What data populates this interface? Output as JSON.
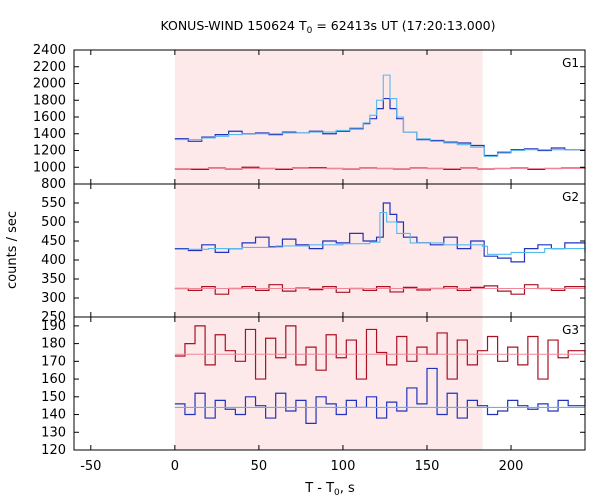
{
  "chart_data": {
    "type": "line",
    "title_main": "KONUS-WIND 150624 T",
    "title_sub": "0",
    "title_rest": " = 62413s UT (17:20:13.000)",
    "xlabel_main": "T - T",
    "xlabel_sub": "0",
    "xlabel_rest": ", s",
    "ylabel": "counts / sec",
    "xlim": [
      -60,
      244
    ],
    "xticks": [
      -50,
      0,
      50,
      100,
      150,
      200
    ],
    "highlight_interval": [
      0,
      183
    ],
    "colors": {
      "highlight": "#fde8ea",
      "series_blue": "#2233bb",
      "fit_blue": "#55bbee",
      "series_red": "#aa1122",
      "fit_red": "#ee8899"
    },
    "panels": [
      {
        "label": "G1",
        "ylim": [
          800,
          2400
        ],
        "yticks": [
          800,
          1000,
          1200,
          1400,
          1600,
          1800,
          2000,
          2200,
          2400
        ],
        "series": [
          {
            "color_key": "series_blue",
            "x": [
              0,
              8,
              16,
              24,
              32,
              40,
              48,
              56,
              64,
              72,
              80,
              88,
              96,
              104,
              112,
              116,
              120,
              124,
              128,
              132,
              136,
              144,
              152,
              160,
              168,
              176,
              184,
              192,
              200,
              208,
              216,
              224,
              232,
              244
            ],
            "y": [
              1340,
              1310,
              1360,
              1390,
              1430,
              1400,
              1410,
              1390,
              1420,
              1410,
              1430,
              1400,
              1430,
              1460,
              1520,
              1580,
              1700,
              1820,
              1700,
              1580,
              1420,
              1330,
              1320,
              1300,
              1290,
              1260,
              1140,
              1180,
              1210,
              1220,
              1200,
              1230,
              1210,
              1210
            ]
          },
          {
            "color_key": "fit_blue",
            "x": [
              0,
              8,
              16,
              24,
              32,
              40,
              48,
              56,
              64,
              72,
              80,
              88,
              96,
              104,
              112,
              116,
              120,
              124,
              128,
              132,
              136,
              144,
              152,
              160,
              168,
              176,
              184,
              192,
              200,
              208,
              216,
              224,
              232,
              244
            ],
            "y": [
              1330,
              1330,
              1350,
              1370,
              1390,
              1400,
              1400,
              1400,
              1410,
              1410,
              1420,
              1420,
              1440,
              1470,
              1530,
              1620,
              1800,
              2100,
              1820,
              1600,
              1420,
              1340,
              1310,
              1290,
              1270,
              1240,
              1130,
              1170,
              1200,
              1210,
              1210,
              1210,
              1210,
              1210
            ]
          },
          {
            "color_key": "series_red",
            "x": [
              0,
              10,
              20,
              30,
              40,
              50,
              60,
              70,
              80,
              90,
              100,
              110,
              120,
              130,
              140,
              150,
              160,
              170,
              180,
              190,
              200,
              210,
              220,
              230,
              244
            ],
            "y": [
              980,
              975,
              990,
              980,
              1000,
              985,
              975,
              990,
              995,
              985,
              980,
              990,
              985,
              980,
              990,
              985,
              975,
              990,
              980,
              985,
              990,
              975,
              985,
              990,
              980
            ]
          },
          {
            "color_key": "fit_red",
            "x": [
              0,
              244
            ],
            "y": [
              985,
              985
            ]
          }
        ]
      },
      {
        "label": "G2",
        "ylim": [
          250,
          600
        ],
        "yticks": [
          250,
          300,
          350,
          400,
          450,
          500,
          550
        ],
        "series": [
          {
            "color_key": "series_blue",
            "x": [
              0,
              8,
              16,
              24,
              32,
              40,
              48,
              56,
              64,
              72,
              80,
              88,
              96,
              104,
              112,
              120,
              124,
              128,
              132,
              136,
              144,
              152,
              160,
              168,
              176,
              184,
              192,
              200,
              208,
              216,
              224,
              232,
              244
            ],
            "y": [
              430,
              425,
              440,
              420,
              430,
              445,
              460,
              435,
              455,
              440,
              430,
              450,
              445,
              470,
              450,
              460,
              550,
              520,
              500,
              460,
              445,
              440,
              460,
              430,
              450,
              410,
              405,
              395,
              430,
              440,
              430,
              445,
              420
            ]
          },
          {
            "color_key": "fit_blue",
            "x": [
              0,
              20,
              40,
              60,
              80,
              100,
              116,
              122,
              126,
              132,
              140,
              160,
              183,
              186,
              200,
              220,
              244
            ],
            "y": [
              428,
              430,
              433,
              437,
              440,
              443,
              447,
              525,
              500,
              470,
              445,
              440,
              436,
              415,
              420,
              430,
              430
            ]
          },
          {
            "color_key": "series_red",
            "x": [
              0,
              8,
              16,
              24,
              32,
              40,
              48,
              56,
              64,
              72,
              80,
              88,
              96,
              104,
              112,
              120,
              128,
              136,
              144,
              152,
              160,
              168,
              176,
              184,
              192,
              200,
              208,
              216,
              224,
              232,
              244
            ],
            "y": [
              325,
              320,
              330,
              310,
              325,
              330,
              320,
              335,
              318,
              326,
              322,
              330,
              315,
              325,
              320,
              330,
              316,
              328,
              321,
              325,
              330,
              320,
              328,
              332,
              318,
              310,
              335,
              325,
              320,
              330,
              325
            ]
          },
          {
            "color_key": "fit_red",
            "x": [
              0,
              244
            ],
            "y": [
              325,
              325
            ]
          }
        ]
      },
      {
        "label": "G3",
        "ylim": [
          120,
          195
        ],
        "yticks": [
          120,
          130,
          140,
          150,
          160,
          170,
          180,
          190
        ],
        "series": [
          {
            "color_key": "series_red",
            "x": [
              0,
              6,
              12,
              18,
              24,
              30,
              36,
              42,
              48,
              54,
              60,
              66,
              72,
              78,
              84,
              90,
              96,
              102,
              108,
              114,
              120,
              126,
              132,
              138,
              144,
              150,
              156,
              162,
              168,
              174,
              180,
              186,
              192,
              198,
              204,
              210,
              216,
              222,
              228,
              234,
              244
            ],
            "y": [
              173,
              180,
              190,
              168,
              185,
              176,
              170,
              188,
              160,
              183,
              172,
              190,
              168,
              178,
              165,
              185,
              172,
              182,
              160,
              188,
              175,
              168,
              184,
              170,
              178,
              174,
              186,
              160,
              182,
              168,
              176,
              184,
              170,
              178,
              168,
              184,
              160,
              182,
              172,
              176,
              174
            ]
          },
          {
            "color_key": "fit_red",
            "x": [
              0,
              244
            ],
            "y": [
              174,
              174
            ]
          },
          {
            "color_key": "series_blue",
            "x": [
              0,
              6,
              12,
              18,
              24,
              30,
              36,
              42,
              48,
              54,
              60,
              66,
              72,
              78,
              84,
              90,
              96,
              102,
              108,
              114,
              120,
              126,
              132,
              138,
              144,
              150,
              156,
              162,
              168,
              174,
              180,
              186,
              192,
              198,
              204,
              210,
              216,
              222,
              228,
              234,
              244
            ],
            "y": [
              146,
              140,
              152,
              138,
              148,
              143,
              140,
              150,
              145,
              138,
              152,
              142,
              148,
              135,
              150,
              146,
              140,
              148,
              144,
              150,
              138,
              147,
              142,
              155,
              146,
              166,
              140,
              152,
              138,
              148,
              145,
              140,
              142,
              148,
              145,
              143,
              146,
              142,
              148,
              145,
              149
            ]
          },
          {
            "color_key": "fit_blue",
            "x": [
              0,
              244
            ],
            "y": [
              144,
              144
            ]
          }
        ]
      }
    ]
  }
}
